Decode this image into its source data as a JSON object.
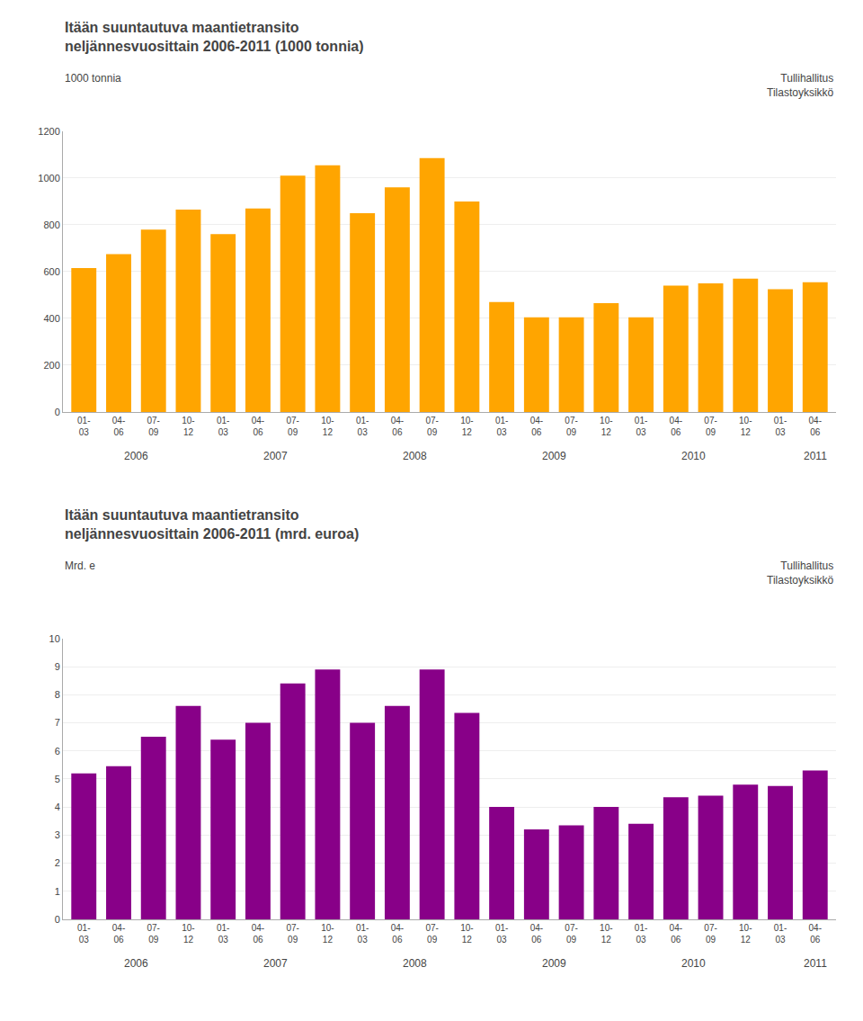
{
  "chart_data": [
    {
      "type": "bar",
      "title": "Itään suuntautuva maantietransito\nneljännesvuosittain 2006-2011 (1000 tonnia)",
      "ylabel": "1000 tonnia",
      "watermark": "Tullihallitus\nTilastoyksikkö",
      "categories": [
        "01-\n03",
        "04-\n06",
        "07-\n09",
        "10-\n12",
        "01-\n03",
        "04-\n06",
        "07-\n09",
        "10-\n12",
        "01-\n03",
        "04-\n06",
        "07-\n09",
        "10-\n12",
        "01-\n03",
        "04-\n06",
        "07-\n09",
        "10-\n12",
        "01-\n03",
        "04-\n06",
        "07-\n09",
        "10-\n12",
        "01-\n03",
        "04-\n06"
      ],
      "values": [
        615,
        675,
        780,
        865,
        760,
        870,
        1010,
        1055,
        850,
        960,
        1085,
        900,
        470,
        405,
        405,
        465,
        405,
        540,
        550,
        570,
        525,
        555
      ],
      "color": "#FFA500",
      "ylim": [
        0,
        1200
      ],
      "yticks": [
        0,
        200,
        400,
        600,
        800,
        1000,
        1200
      ],
      "grid": true,
      "annotations": [
        {
          "text": "2006",
          "x": 1.5
        },
        {
          "text": "2007",
          "x": 5.5
        },
        {
          "text": "2008",
          "x": 9.5
        },
        {
          "text": "2009",
          "x": 13.5
        },
        {
          "text": "2010",
          "x": 17.5
        },
        {
          "text": "2011",
          "x": 21.0
        }
      ]
    },
    {
      "type": "bar",
      "title": "Itään suuntautuva maantietransito\nneljännesvuosittain 2006-2011 (mrd. euroa)",
      "ylabel": "Mrd. e",
      "watermark": "Tullihallitus\nTilastoyksikkö",
      "categories": [
        "01-\n03",
        "04-\n06",
        "07-\n09",
        "10-\n12",
        "01-\n03",
        "04-\n06",
        "07-\n09",
        "10-\n12",
        "01-\n03",
        "04-\n06",
        "07-\n09",
        "10-\n12",
        "01-\n03",
        "04-\n06",
        "07-\n09",
        "10-\n12",
        "01-\n03",
        "04-\n06",
        "07-\n09",
        "10-\n12",
        "01-\n03",
        "04-\n06"
      ],
      "values": [
        5.2,
        5.45,
        6.5,
        7.6,
        6.4,
        7.0,
        8.4,
        8.9,
        7.0,
        7.6,
        8.9,
        7.35,
        4.0,
        3.2,
        3.35,
        4.0,
        3.4,
        4.35,
        4.4,
        4.8,
        4.75,
        5.3
      ],
      "color": "#880088",
      "ylim": [
        0,
        10
      ],
      "yticks": [
        0,
        1,
        2,
        3,
        4,
        5,
        6,
        7,
        8,
        9,
        10
      ],
      "grid": true,
      "annotations": [
        {
          "text": "2006",
          "x": 1.5
        },
        {
          "text": "2007",
          "x": 5.5
        },
        {
          "text": "2008",
          "x": 9.5
        },
        {
          "text": "2009",
          "x": 13.5
        },
        {
          "text": "2010",
          "x": 17.5
        },
        {
          "text": "2011",
          "x": 21.0
        }
      ]
    }
  ]
}
